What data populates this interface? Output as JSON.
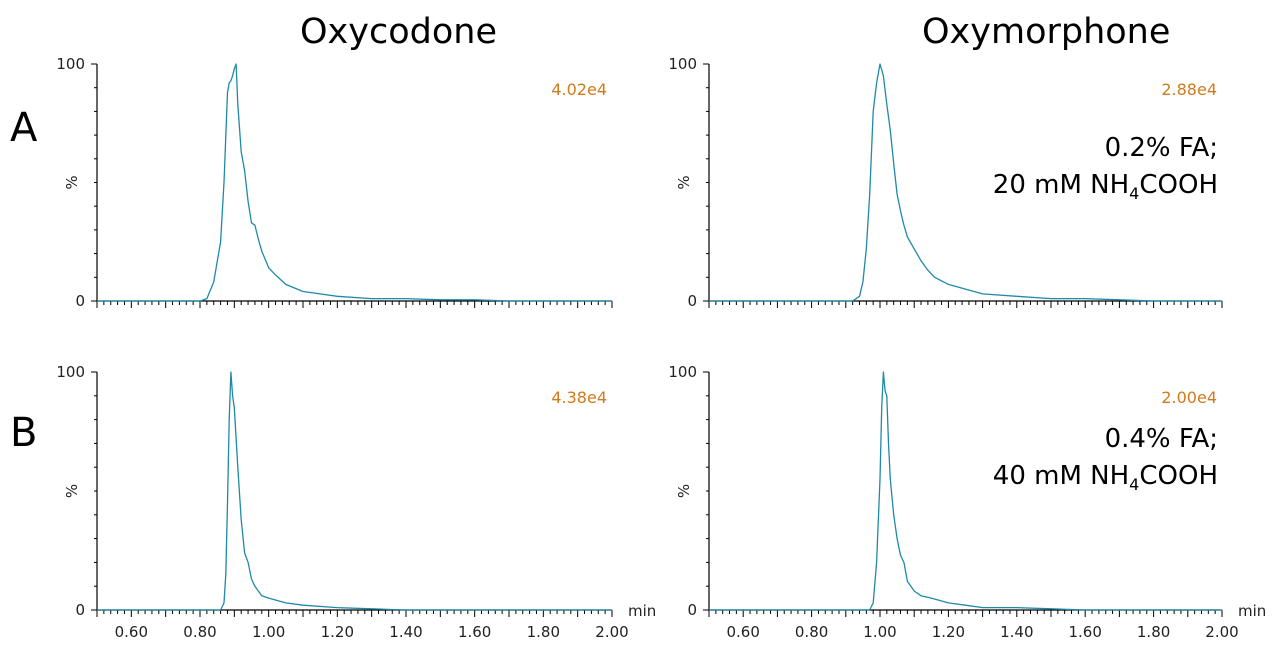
{
  "rows": [
    {
      "label": "A",
      "note_line1": "0.2% FA;",
      "note_line2_pre": "20 mM NH",
      "note_line2_sub": "4",
      "note_line2_post": "COOH"
    },
    {
      "label": "B",
      "note_line1": "0.4% FA;",
      "note_line2_pre": "40 mM NH",
      "note_line2_sub": "4",
      "note_line2_post": "COOH"
    }
  ],
  "columns": [
    {
      "title": "Oxycodone"
    },
    {
      "title": "Oxymorphone"
    }
  ],
  "colors": {
    "trace": "#1f8aa8",
    "intensity": "#d07a1c",
    "axis": "#000000"
  },
  "chart_data": [
    {
      "type": "line",
      "title": "Oxycodone",
      "row": "A",
      "intensity_label": "4.02e4",
      "ylabel": "%",
      "xlabel": "",
      "xlim": [
        0.5,
        2.0
      ],
      "ylim": [
        0,
        100
      ],
      "yticks": [
        "0",
        "100"
      ],
      "xticks": [],
      "x": [
        0.5,
        0.8,
        0.82,
        0.84,
        0.86,
        0.87,
        0.88,
        0.885,
        0.89,
        0.895,
        0.9,
        0.905,
        0.91,
        0.92,
        0.93,
        0.94,
        0.95,
        0.96,
        0.97,
        0.98,
        1.0,
        1.02,
        1.05,
        1.1,
        1.15,
        1.2,
        1.3,
        1.4,
        1.5,
        1.6,
        1.7,
        1.8,
        1.9,
        2.0
      ],
      "y": [
        0,
        0,
        1,
        8,
        25,
        50,
        88,
        92,
        93,
        95,
        98,
        100,
        83,
        63,
        55,
        42,
        33,
        32,
        26,
        21,
        14,
        11,
        7,
        4,
        3,
        2,
        1,
        1,
        0.5,
        0.5,
        0,
        0,
        0,
        0
      ]
    },
    {
      "type": "line",
      "title": "Oxymorphone",
      "row": "A",
      "intensity_label": "2.88e4",
      "ylabel": "%",
      "xlabel": "",
      "xlim": [
        0.5,
        2.0
      ],
      "ylim": [
        0,
        100
      ],
      "yticks": [
        "0",
        "100"
      ],
      "xticks": [],
      "x": [
        0.5,
        0.92,
        0.94,
        0.95,
        0.96,
        0.97,
        0.98,
        0.99,
        1.0,
        1.01,
        1.02,
        1.03,
        1.04,
        1.05,
        1.06,
        1.07,
        1.08,
        1.1,
        1.12,
        1.14,
        1.16,
        1.2,
        1.25,
        1.3,
        1.4,
        1.5,
        1.6,
        1.7,
        1.8,
        1.9,
        2.0
      ],
      "y": [
        0,
        0,
        2,
        8,
        22,
        45,
        80,
        92,
        100,
        95,
        83,
        72,
        58,
        45,
        38,
        32,
        27,
        22,
        17,
        13,
        10,
        7,
        5,
        3,
        2,
        1,
        1,
        0.5,
        0,
        0,
        0
      ]
    },
    {
      "type": "line",
      "title": "Oxycodone",
      "row": "B",
      "intensity_label": "4.38e4",
      "ylabel": "%",
      "xlabel": "min",
      "xlim": [
        0.5,
        2.0
      ],
      "ylim": [
        0,
        100
      ],
      "yticks": [
        "0",
        "100"
      ],
      "xticks": [
        "0.60",
        "0.80",
        "1.00",
        "1.20",
        "1.40",
        "1.60",
        "1.80",
        "2.00"
      ],
      "x": [
        0.5,
        0.86,
        0.87,
        0.875,
        0.88,
        0.885,
        0.89,
        0.895,
        0.9,
        0.91,
        0.92,
        0.93,
        0.94,
        0.95,
        0.96,
        0.98,
        1.0,
        1.05,
        1.1,
        1.2,
        1.3,
        1.4,
        1.6,
        1.8,
        2.0
      ],
      "y": [
        0,
        0,
        3,
        15,
        45,
        80,
        100,
        90,
        85,
        60,
        38,
        24,
        20,
        13,
        10,
        6,
        5,
        3,
        2,
        1,
        0.5,
        0,
        0,
        0,
        0
      ]
    },
    {
      "type": "line",
      "title": "Oxymorphone",
      "row": "B",
      "intensity_label": "2.00e4",
      "ylabel": "%",
      "xlabel": "min",
      "xlim": [
        0.5,
        2.0
      ],
      "ylim": [
        0,
        100
      ],
      "yticks": [
        "0",
        "100"
      ],
      "xticks": [
        "0.60",
        "0.80",
        "1.00",
        "1.20",
        "1.40",
        "1.60",
        "1.80",
        "2.00"
      ],
      "x": [
        0.5,
        0.97,
        0.98,
        0.99,
        1.0,
        1.005,
        1.01,
        1.015,
        1.02,
        1.025,
        1.03,
        1.04,
        1.05,
        1.06,
        1.07,
        1.08,
        1.1,
        1.12,
        1.15,
        1.2,
        1.25,
        1.3,
        1.4,
        1.5,
        1.6,
        1.8,
        2.0
      ],
      "y": [
        0,
        0,
        3,
        20,
        55,
        85,
        100,
        92,
        90,
        70,
        55,
        40,
        30,
        23,
        20,
        12,
        8,
        6,
        5,
        3,
        2,
        1,
        1,
        0.5,
        0,
        0,
        0
      ]
    }
  ]
}
